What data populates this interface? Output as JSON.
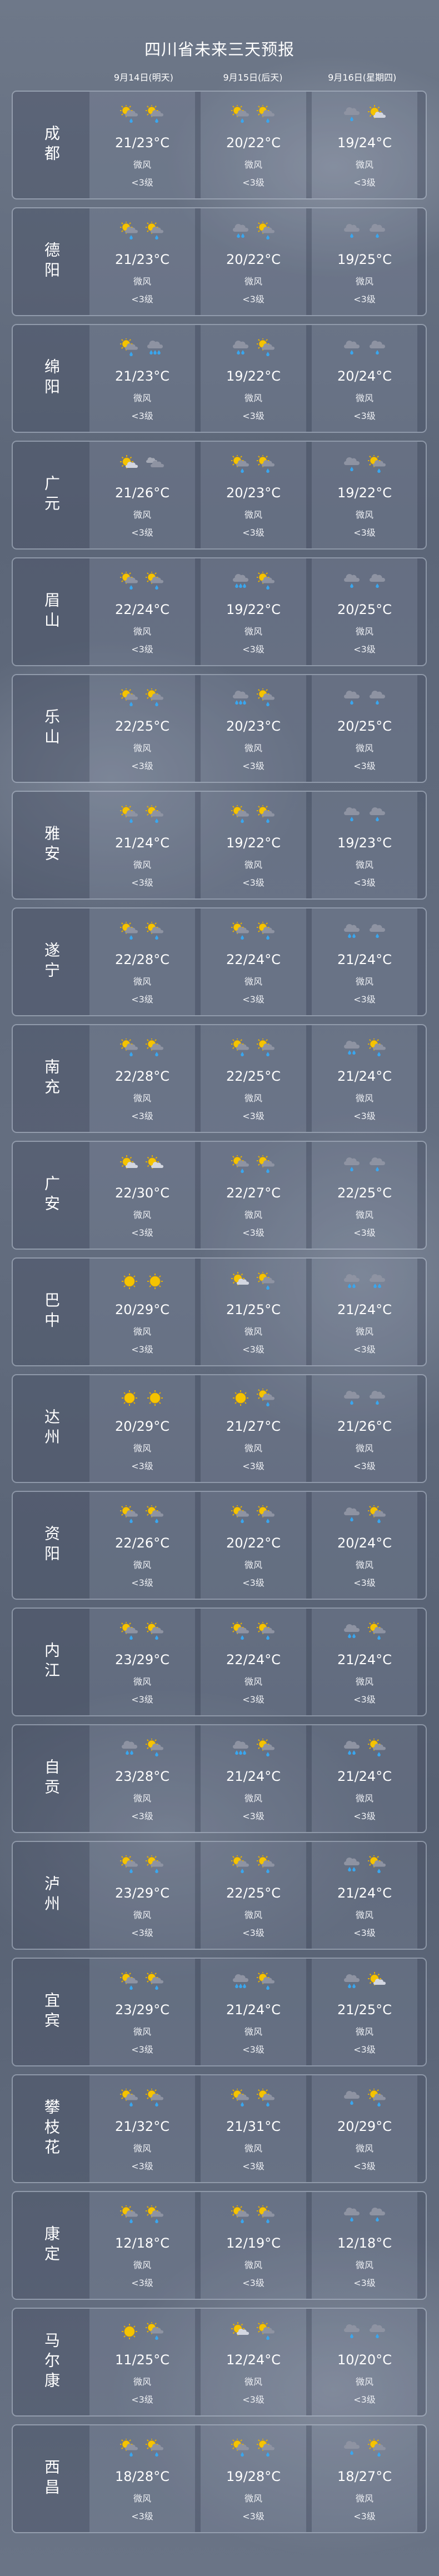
{
  "title": "四川省未来三天预报",
  "dates": [
    "9月14日(明天)",
    "9月15日(后天)",
    "9月16日(星期四)"
  ],
  "icon_legend": {
    "sr": "sun-cloud-rain",
    "r1": "cloud-light-rain",
    "r2": "cloud-moderate-rain",
    "r3": "cloud-heavy-rain",
    "sc": "sun-cloud",
    "c": "overcast",
    "s": "sunny"
  },
  "colors": {
    "sun": "#f5c400",
    "cloud": "#8e93a2",
    "cloud_light": "#d3d6e0",
    "drop": "#3aa6ee"
  },
  "rows": [
    {
      "city": "成都",
      "days": [
        {
          "icons": [
            "sr",
            "sr"
          ],
          "temp": "21/23°C",
          "wind": "微风",
          "level": "<3级"
        },
        {
          "icons": [
            "sr",
            "sr"
          ],
          "temp": "20/22°C",
          "wind": "微风",
          "level": "<3级"
        },
        {
          "icons": [
            "r1",
            "sc"
          ],
          "temp": "19/24°C",
          "wind": "微风",
          "level": "<3级"
        }
      ]
    },
    {
      "city": "德阳",
      "days": [
        {
          "icons": [
            "sr",
            "sr"
          ],
          "temp": "21/23°C",
          "wind": "微风",
          "level": "<3级"
        },
        {
          "icons": [
            "r2",
            "sr"
          ],
          "temp": "20/22°C",
          "wind": "微风",
          "level": "<3级"
        },
        {
          "icons": [
            "r1",
            "r1"
          ],
          "temp": "19/25°C",
          "wind": "微风",
          "level": "<3级"
        }
      ]
    },
    {
      "city": "绵阳",
      "days": [
        {
          "icons": [
            "sr",
            "r3"
          ],
          "temp": "21/23°C",
          "wind": "微风",
          "level": "<3级"
        },
        {
          "icons": [
            "r2",
            "sr"
          ],
          "temp": "19/22°C",
          "wind": "微风",
          "level": "<3级"
        },
        {
          "icons": [
            "r1",
            "r1"
          ],
          "temp": "20/24°C",
          "wind": "微风",
          "level": "<3级"
        }
      ]
    },
    {
      "city": "广元",
      "days": [
        {
          "icons": [
            "sc",
            "c"
          ],
          "temp": "21/26°C",
          "wind": "微风",
          "level": "<3级"
        },
        {
          "icons": [
            "sr",
            "sr"
          ],
          "temp": "20/23°C",
          "wind": "微风",
          "level": "<3级"
        },
        {
          "icons": [
            "r1",
            "sr"
          ],
          "temp": "19/22°C",
          "wind": "微风",
          "level": "<3级"
        }
      ]
    },
    {
      "city": "眉山",
      "days": [
        {
          "icons": [
            "sr",
            "sr"
          ],
          "temp": "22/24°C",
          "wind": "微风",
          "level": "<3级"
        },
        {
          "icons": [
            "r3",
            "sr"
          ],
          "temp": "19/22°C",
          "wind": "微风",
          "level": "<3级"
        },
        {
          "icons": [
            "r1",
            "r1"
          ],
          "temp": "20/25°C",
          "wind": "微风",
          "level": "<3级"
        }
      ]
    },
    {
      "city": "乐山",
      "days": [
        {
          "icons": [
            "sr",
            "sr"
          ],
          "temp": "22/25°C",
          "wind": "微风",
          "level": "<3级"
        },
        {
          "icons": [
            "r3",
            "sr"
          ],
          "temp": "20/23°C",
          "wind": "微风",
          "level": "<3级"
        },
        {
          "icons": [
            "r1",
            "r1"
          ],
          "temp": "20/25°C",
          "wind": "微风",
          "level": "<3级"
        }
      ]
    },
    {
      "city": "雅安",
      "days": [
        {
          "icons": [
            "sr",
            "sr"
          ],
          "temp": "21/24°C",
          "wind": "微风",
          "level": "<3级"
        },
        {
          "icons": [
            "sr",
            "sr"
          ],
          "temp": "19/22°C",
          "wind": "微风",
          "level": "<3级"
        },
        {
          "icons": [
            "r1",
            "r1"
          ],
          "temp": "19/23°C",
          "wind": "微风",
          "level": "<3级"
        }
      ]
    },
    {
      "city": "遂宁",
      "days": [
        {
          "icons": [
            "sr",
            "sr"
          ],
          "temp": "22/28°C",
          "wind": "微风",
          "level": "<3级"
        },
        {
          "icons": [
            "sr",
            "sr"
          ],
          "temp": "22/24°C",
          "wind": "微风",
          "level": "<3级"
        },
        {
          "icons": [
            "r2",
            "r1"
          ],
          "temp": "21/24°C",
          "wind": "微风",
          "level": "<3级"
        }
      ]
    },
    {
      "city": "南充",
      "days": [
        {
          "icons": [
            "sr",
            "sr"
          ],
          "temp": "22/28°C",
          "wind": "微风",
          "level": "<3级"
        },
        {
          "icons": [
            "sr",
            "sr"
          ],
          "temp": "22/25°C",
          "wind": "微风",
          "level": "<3级"
        },
        {
          "icons": [
            "r2",
            "sr"
          ],
          "temp": "21/24°C",
          "wind": "微风",
          "level": "<3级"
        }
      ]
    },
    {
      "city": "广安",
      "days": [
        {
          "icons": [
            "sc",
            "sc"
          ],
          "temp": "22/30°C",
          "wind": "微风",
          "level": "<3级"
        },
        {
          "icons": [
            "sr",
            "sr"
          ],
          "temp": "22/27°C",
          "wind": "微风",
          "level": "<3级"
        },
        {
          "icons": [
            "r1",
            "r1"
          ],
          "temp": "22/25°C",
          "wind": "微风",
          "level": "<3级"
        }
      ]
    },
    {
      "city": "巴中",
      "days": [
        {
          "icons": [
            "s",
            "s"
          ],
          "temp": "20/29°C",
          "wind": "微风",
          "level": "<3级"
        },
        {
          "icons": [
            "sc",
            "sr"
          ],
          "temp": "21/25°C",
          "wind": "微风",
          "level": "<3级"
        },
        {
          "icons": [
            "r2",
            "r2"
          ],
          "temp": "21/24°C",
          "wind": "微风",
          "level": "<3级"
        }
      ]
    },
    {
      "city": "达州",
      "days": [
        {
          "icons": [
            "s",
            "s"
          ],
          "temp": "20/29°C",
          "wind": "微风",
          "level": "<3级"
        },
        {
          "icons": [
            "s",
            "sr"
          ],
          "temp": "21/27°C",
          "wind": "微风",
          "level": "<3级"
        },
        {
          "icons": [
            "r1",
            "r1"
          ],
          "temp": "21/26°C",
          "wind": "微风",
          "level": "<3级"
        }
      ]
    },
    {
      "city": "资阳",
      "days": [
        {
          "icons": [
            "sr",
            "sr"
          ],
          "temp": "22/26°C",
          "wind": "微风",
          "level": "<3级"
        },
        {
          "icons": [
            "sr",
            "sr"
          ],
          "temp": "20/22°C",
          "wind": "微风",
          "level": "<3级"
        },
        {
          "icons": [
            "r1",
            "sr"
          ],
          "temp": "20/24°C",
          "wind": "微风",
          "level": "<3级"
        }
      ]
    },
    {
      "city": "内江",
      "days": [
        {
          "icons": [
            "sr",
            "sr"
          ],
          "temp": "23/29°C",
          "wind": "微风",
          "level": "<3级"
        },
        {
          "icons": [
            "sr",
            "sr"
          ],
          "temp": "22/24°C",
          "wind": "微风",
          "level": "<3级"
        },
        {
          "icons": [
            "r2",
            "sr"
          ],
          "temp": "21/24°C",
          "wind": "微风",
          "level": "<3级"
        }
      ]
    },
    {
      "city": "自贡",
      "days": [
        {
          "icons": [
            "r2",
            "sr"
          ],
          "temp": "23/28°C",
          "wind": "微风",
          "level": "<3级"
        },
        {
          "icons": [
            "r3",
            "sr"
          ],
          "temp": "21/24°C",
          "wind": "微风",
          "level": "<3级"
        },
        {
          "icons": [
            "r2",
            "sr"
          ],
          "temp": "21/24°C",
          "wind": "微风",
          "level": "<3级"
        }
      ]
    },
    {
      "city": "泸州",
      "days": [
        {
          "icons": [
            "sr",
            "sr"
          ],
          "temp": "23/29°C",
          "wind": "微风",
          "level": "<3级"
        },
        {
          "icons": [
            "sr",
            "sr"
          ],
          "temp": "22/25°C",
          "wind": "微风",
          "level": "<3级"
        },
        {
          "icons": [
            "r2",
            "sr"
          ],
          "temp": "21/24°C",
          "wind": "微风",
          "level": "<3级"
        }
      ]
    },
    {
      "city": "宜宾",
      "days": [
        {
          "icons": [
            "sr",
            "sr"
          ],
          "temp": "23/29°C",
          "wind": "微风",
          "level": "<3级"
        },
        {
          "icons": [
            "r3",
            "sr"
          ],
          "temp": "21/24°C",
          "wind": "微风",
          "level": "<3级"
        },
        {
          "icons": [
            "r2",
            "sc"
          ],
          "temp": "21/25°C",
          "wind": "微风",
          "level": "<3级"
        }
      ]
    },
    {
      "city": "攀枝花",
      "days": [
        {
          "icons": [
            "sr",
            "sr"
          ],
          "temp": "21/32°C",
          "wind": "微风",
          "level": "<3级"
        },
        {
          "icons": [
            "sr",
            "sr"
          ],
          "temp": "21/31°C",
          "wind": "微风",
          "level": "<3级"
        },
        {
          "icons": [
            "r1",
            "sr"
          ],
          "temp": "20/29°C",
          "wind": "微风",
          "level": "<3级"
        }
      ]
    },
    {
      "city": "康定",
      "days": [
        {
          "icons": [
            "sr",
            "sr"
          ],
          "temp": "12/18°C",
          "wind": "微风",
          "level": "<3级"
        },
        {
          "icons": [
            "sr",
            "sr"
          ],
          "temp": "12/19°C",
          "wind": "微风",
          "level": "<3级"
        },
        {
          "icons": [
            "r1",
            "r1"
          ],
          "temp": "12/18°C",
          "wind": "微风",
          "level": "<3级"
        }
      ]
    },
    {
      "city": "马尔康",
      "days": [
        {
          "icons": [
            "s",
            "sr"
          ],
          "temp": "11/25°C",
          "wind": "微风",
          "level": "<3级"
        },
        {
          "icons": [
            "sc",
            "sr"
          ],
          "temp": "12/24°C",
          "wind": "微风",
          "level": "<3级"
        },
        {
          "icons": [
            "r1",
            "r1"
          ],
          "temp": "10/20°C",
          "wind": "微风",
          "level": "<3级"
        }
      ]
    },
    {
      "city": "西昌",
      "days": [
        {
          "icons": [
            "sr",
            "sr"
          ],
          "temp": "18/28°C",
          "wind": "微风",
          "level": "<3级"
        },
        {
          "icons": [
            "sr",
            "sr"
          ],
          "temp": "19/28°C",
          "wind": "微风",
          "level": "<3级"
        },
        {
          "icons": [
            "r1",
            "sr"
          ],
          "temp": "18/27°C",
          "wind": "微风",
          "level": "<3级"
        }
      ]
    }
  ]
}
